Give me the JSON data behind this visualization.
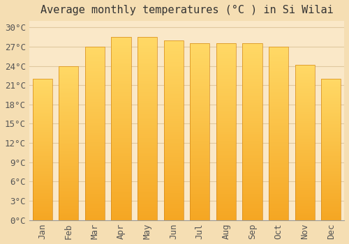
{
  "title": "Average monthly temperatures (°C ) in Si Wilai",
  "months": [
    "Jan",
    "Feb",
    "Mar",
    "Apr",
    "May",
    "Jun",
    "Jul",
    "Aug",
    "Sep",
    "Oct",
    "Nov",
    "Dec"
  ],
  "values": [
    22,
    24,
    27,
    28.5,
    28.5,
    28,
    27.5,
    27.5,
    27.5,
    27,
    24.2,
    22
  ],
  "bar_color_bottom": "#F5A623",
  "bar_color_top": "#FFD966",
  "bar_edge_color": "#D4891A",
  "background_color": "#F5DEB3",
  "plot_bg_color": "#FAE8C8",
  "grid_color": "#E0C8A0",
  "title_fontsize": 11,
  "tick_fontsize": 9,
  "ylim": [
    0,
    31
  ],
  "ytick_interval": 3,
  "yticks": [
    0,
    3,
    6,
    9,
    12,
    15,
    18,
    21,
    24,
    27,
    30
  ]
}
